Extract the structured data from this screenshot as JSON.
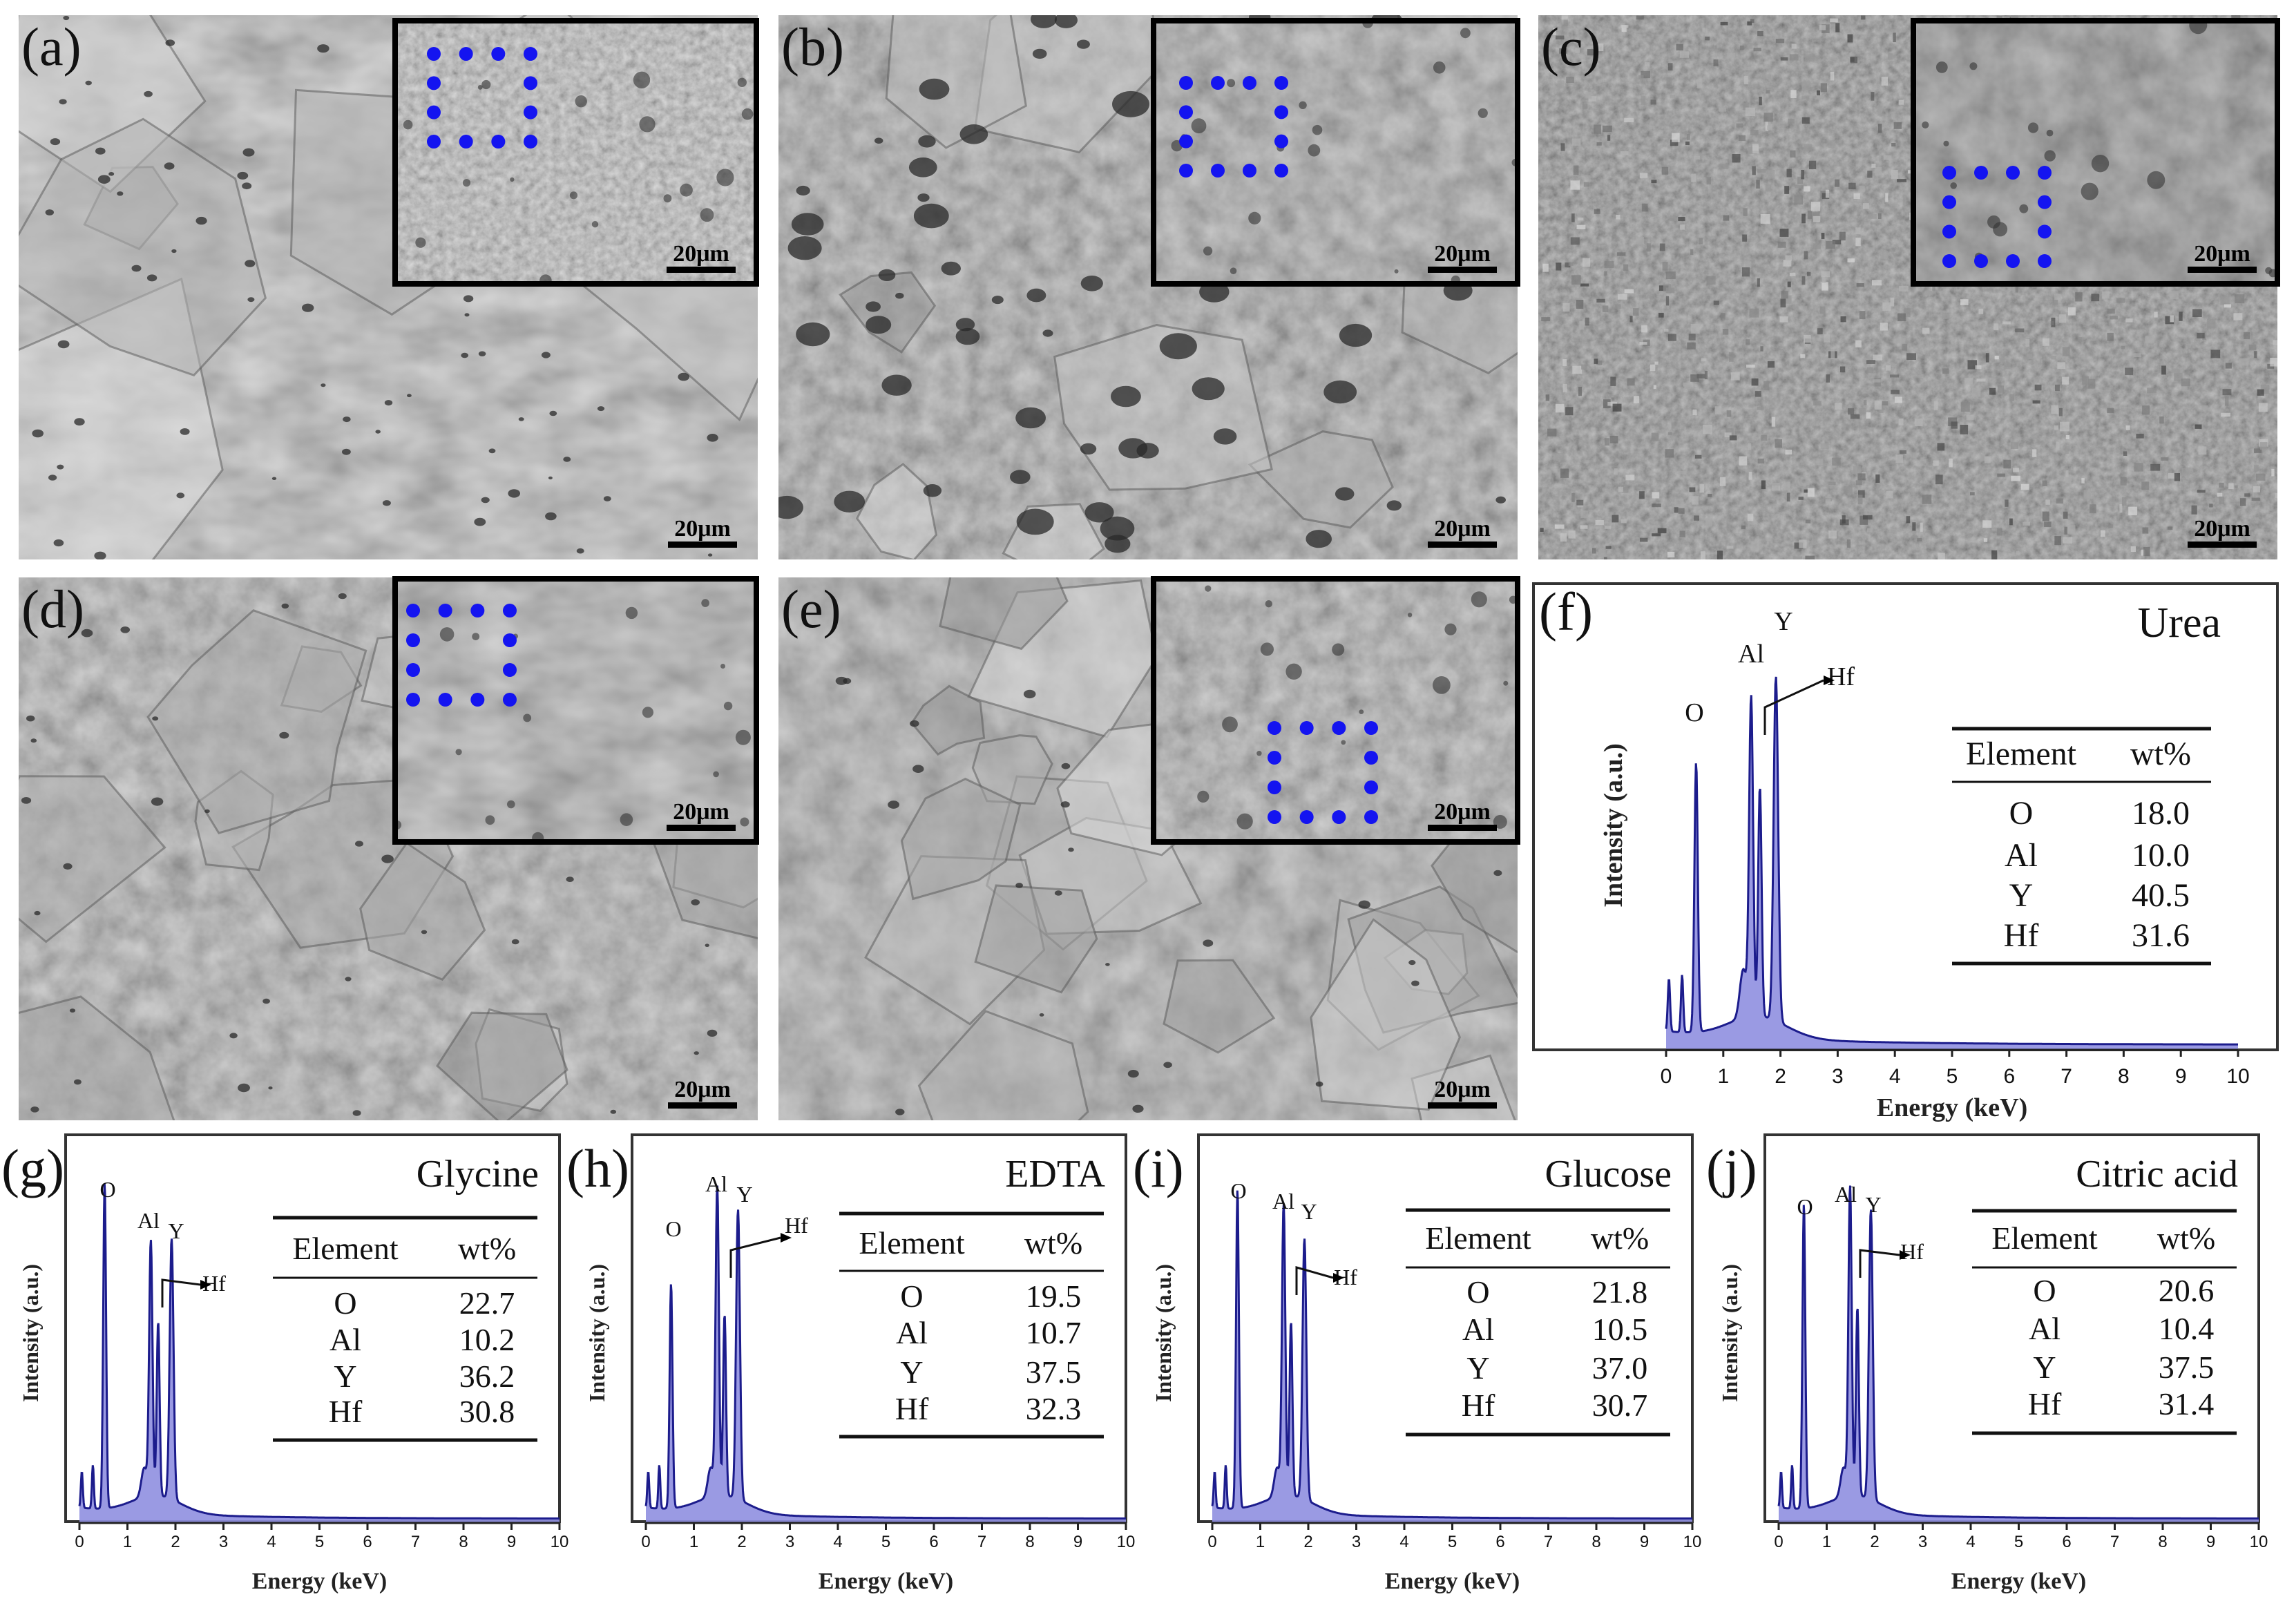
{
  "sem_panels": [
    {
      "label": "(a)",
      "inset_scale": "20μm",
      "main_scale": "20μm",
      "texture": "smooth"
    },
    {
      "label": "(b)",
      "inset_scale": "20μm",
      "main_scale": "20μm",
      "texture": "porous"
    },
    {
      "label": "(c)",
      "inset_scale": "20μm",
      "main_scale": "20μm",
      "texture": "granular"
    },
    {
      "label": "(d)",
      "inset_scale": "20μm",
      "main_scale": "20μm",
      "texture": "flaky"
    },
    {
      "label": "(e)",
      "inset_scale": "20μm",
      "main_scale": "20μm",
      "texture": "shell"
    }
  ],
  "colors": {
    "marker_dots": "#1414f0",
    "spectrum_line": "#1c1c8c",
    "spectrum_fill": "#8f8fe0"
  },
  "chart_data": [
    {
      "type": "area",
      "label": "(f)",
      "title": "Urea",
      "xlabel": "Energy (keV)",
      "ylabel": "Intensity (a.u.)",
      "xlim": [
        0,
        10
      ],
      "xticks": [
        "0",
        "1",
        "2",
        "3",
        "4",
        "5",
        "6",
        "7",
        "8",
        "9",
        "10"
      ],
      "peak_labels": [
        "O",
        "Al",
        "Y",
        "Hf"
      ],
      "table": {
        "headers": [
          "Element",
          "wt%"
        ],
        "rows": [
          [
            "O",
            "18.0"
          ],
          [
            "Al",
            "10.0"
          ],
          [
            "Y",
            "40.5"
          ],
          [
            "Hf",
            "31.6"
          ]
        ]
      },
      "peaks": [
        {
          "x": 0.05,
          "h": 0.12,
          "w": 0.02
        },
        {
          "x": 0.28,
          "h": 0.13,
          "w": 0.02
        },
        {
          "x": 0.525,
          "h": 0.61,
          "w": 0.03
        },
        {
          "x": 1.35,
          "h": 0.11,
          "w": 0.06
        },
        {
          "x": 1.487,
          "h": 0.72,
          "w": 0.035
        },
        {
          "x": 1.64,
          "h": 0.52,
          "w": 0.03
        },
        {
          "x": 1.92,
          "h": 0.78,
          "w": 0.04
        }
      ]
    },
    {
      "type": "area",
      "label": "(g)",
      "title": "Glycine",
      "xlabel": "Energy (keV)",
      "ylabel": "Intensity (a.u.)",
      "xlim": [
        0,
        10
      ],
      "xticks": [
        "0",
        "1",
        "2",
        "3",
        "4",
        "5",
        "6",
        "7",
        "8",
        "9",
        "10"
      ],
      "peak_labels": [
        "O",
        "Al",
        "Y",
        "Hf"
      ],
      "table": {
        "headers": [
          "Element",
          "wt%"
        ],
        "rows": [
          [
            "O",
            "22.7"
          ],
          [
            "Al",
            "10.2"
          ],
          [
            "Y",
            "36.2"
          ],
          [
            "Hf",
            "30.8"
          ]
        ]
      },
      "peaks": [
        {
          "x": 0.05,
          "h": 0.1,
          "w": 0.02
        },
        {
          "x": 0.28,
          "h": 0.12,
          "w": 0.02
        },
        {
          "x": 0.525,
          "h": 0.9,
          "w": 0.03
        },
        {
          "x": 1.35,
          "h": 0.08,
          "w": 0.06
        },
        {
          "x": 1.487,
          "h": 0.7,
          "w": 0.035
        },
        {
          "x": 1.64,
          "h": 0.48,
          "w": 0.03
        },
        {
          "x": 1.92,
          "h": 0.72,
          "w": 0.04
        }
      ]
    },
    {
      "type": "area",
      "label": "(h)",
      "title": "EDTA",
      "xlabel": "Energy (keV)",
      "ylabel": "Intensity (a.u.)",
      "xlim": [
        0,
        10
      ],
      "xticks": [
        "0",
        "1",
        "2",
        "3",
        "4",
        "5",
        "6",
        "7",
        "8",
        "9",
        "10"
      ],
      "peak_labels": [
        "O",
        "Al",
        "Y",
        "Hf"
      ],
      "table": {
        "headers": [
          "Element",
          "wt%"
        ],
        "rows": [
          [
            "O",
            "19.5"
          ],
          [
            "Al",
            "10.7"
          ],
          [
            "Y",
            "37.5"
          ],
          [
            "Hf",
            "32.3"
          ]
        ]
      },
      "peaks": [
        {
          "x": 0.05,
          "h": 0.1,
          "w": 0.02
        },
        {
          "x": 0.28,
          "h": 0.12,
          "w": 0.02
        },
        {
          "x": 0.525,
          "h": 0.62,
          "w": 0.03
        },
        {
          "x": 1.35,
          "h": 0.08,
          "w": 0.06
        },
        {
          "x": 1.487,
          "h": 0.85,
          "w": 0.035
        },
        {
          "x": 1.64,
          "h": 0.5,
          "w": 0.03
        },
        {
          "x": 1.92,
          "h": 0.8,
          "w": 0.04
        }
      ]
    },
    {
      "type": "area",
      "label": "(i)",
      "title": "Glucose",
      "xlabel": "Energy (keV)",
      "ylabel": "Intensity (a.u.)",
      "xlim": [
        0,
        10
      ],
      "xticks": [
        "0",
        "1",
        "2",
        "3",
        "4",
        "5",
        "6",
        "7",
        "8",
        "9",
        "10"
      ],
      "peak_labels": [
        "O",
        "Al",
        "Y",
        "Hf"
      ],
      "table": {
        "headers": [
          "Element",
          "wt%"
        ],
        "rows": [
          [
            "O",
            "21.8"
          ],
          [
            "Al",
            "10.5"
          ],
          [
            "Y",
            "37.0"
          ],
          [
            "Hf",
            "30.7"
          ]
        ]
      },
      "peaks": [
        {
          "x": 0.05,
          "h": 0.1,
          "w": 0.02
        },
        {
          "x": 0.28,
          "h": 0.12,
          "w": 0.02
        },
        {
          "x": 0.525,
          "h": 0.88,
          "w": 0.03
        },
        {
          "x": 1.35,
          "h": 0.08,
          "w": 0.06
        },
        {
          "x": 1.487,
          "h": 0.8,
          "w": 0.035
        },
        {
          "x": 1.64,
          "h": 0.48,
          "w": 0.03
        },
        {
          "x": 1.92,
          "h": 0.72,
          "w": 0.04
        }
      ]
    },
    {
      "type": "area",
      "label": "(j)",
      "title": "Citric acid",
      "xlabel": "Energy (keV)",
      "ylabel": "Intensity (a.u.)",
      "xlim": [
        0,
        10
      ],
      "xticks": [
        "0",
        "1",
        "2",
        "3",
        "4",
        "5",
        "6",
        "7",
        "8",
        "9",
        "10"
      ],
      "peak_labels": [
        "O",
        "Al",
        "Y",
        "Hf"
      ],
      "table": {
        "headers": [
          "Element",
          "wt%"
        ],
        "rows": [
          [
            "O",
            "20.6"
          ],
          [
            "Al",
            "10.4"
          ],
          [
            "Y",
            "37.5"
          ],
          [
            "Hf",
            "31.4"
          ]
        ]
      },
      "peaks": [
        {
          "x": 0.05,
          "h": 0.1,
          "w": 0.02
        },
        {
          "x": 0.28,
          "h": 0.12,
          "w": 0.02
        },
        {
          "x": 0.525,
          "h": 0.84,
          "w": 0.03
        },
        {
          "x": 1.35,
          "h": 0.08,
          "w": 0.06
        },
        {
          "x": 1.487,
          "h": 0.85,
          "w": 0.035
        },
        {
          "x": 1.64,
          "h": 0.52,
          "w": 0.03
        },
        {
          "x": 1.92,
          "h": 0.8,
          "w": 0.04
        }
      ]
    }
  ]
}
